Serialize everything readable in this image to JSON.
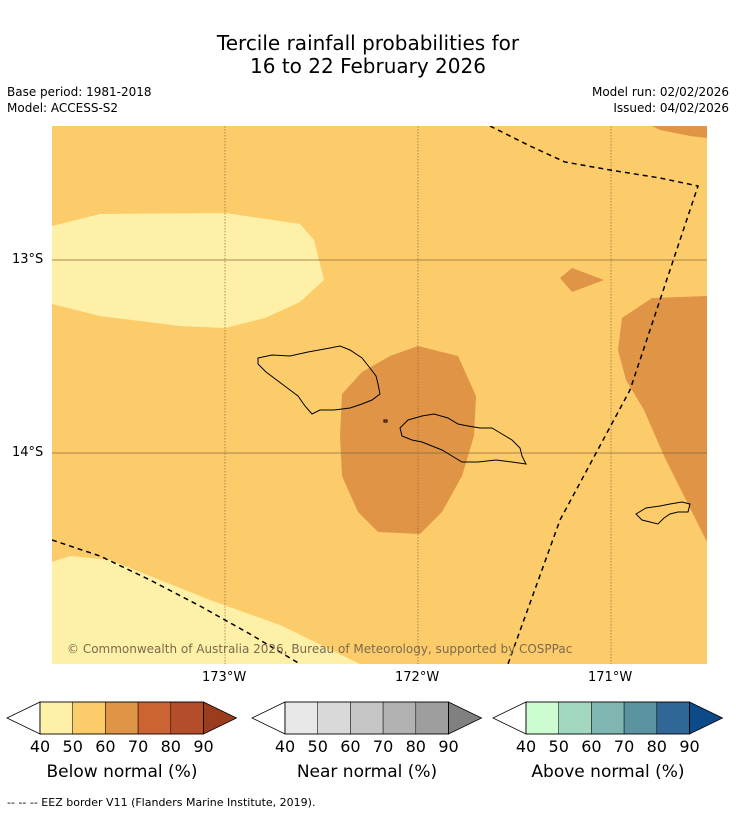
{
  "title": {
    "line1": "Tercile rainfall probabilities for",
    "line2": "16 to 22 February 2026"
  },
  "meta": {
    "base_period": "Base period: 1981-2018",
    "model": "Model: ACCESS-S2",
    "model_run": "Model run: 02/02/2026",
    "issued": "Issued: 04/02/2026"
  },
  "map": {
    "lat_labels": [
      "13°S",
      "14°S"
    ],
    "lon_labels": [
      "173°W",
      "172°W",
      "171°W"
    ],
    "copyright": "© Commonwealth of Australia 2026, Bureau of Meteorology, supported by COSPPac",
    "background_fill": "50-60% below normal",
    "regions": [
      {
        "name": "western pale area",
        "category": "below",
        "bin": "40-50"
      },
      {
        "name": "southwest pale area",
        "category": "below",
        "bin": "40-50"
      },
      {
        "name": "central Samoa region",
        "category": "below",
        "bin": "60-70"
      },
      {
        "name": "eastern region",
        "category": "below",
        "bin": "60-70"
      },
      {
        "name": "small northeast patch",
        "category": "below",
        "bin": "60-70"
      },
      {
        "name": "northeast corner",
        "category": "below",
        "bin": "60-70"
      }
    ]
  },
  "colorbars": [
    {
      "title": "Below normal (%)",
      "ticks": [
        "40",
        "50",
        "60",
        "70",
        "80",
        "90"
      ],
      "colors": [
        "#fff0a8",
        "#fdcc6a",
        "#e09546",
        "#cc6332",
        "#b44e2a",
        "#9a3d1f"
      ]
    },
    {
      "title": "Near normal (%)",
      "ticks": [
        "40",
        "50",
        "60",
        "70",
        "80",
        "90"
      ],
      "colors": [
        "#e8e8e8",
        "#d9d9d9",
        "#c6c6c6",
        "#b2b2b2",
        "#9e9e9e",
        "#808080"
      ]
    },
    {
      "title": "Above normal (%)",
      "ticks": [
        "40",
        "50",
        "60",
        "70",
        "80",
        "90"
      ],
      "colors": [
        "#ccfcd0",
        "#a3d8c0",
        "#80b6b2",
        "#5c93a0",
        "#316796",
        "#0c4a8a"
      ]
    }
  ],
  "footnote": "--  --  -- EEZ border V11 (Flanders Marine Institute, 2019).",
  "colors": {
    "background": "#fdcc6a",
    "pale": "#fff0a8",
    "mid": "#e09546"
  }
}
